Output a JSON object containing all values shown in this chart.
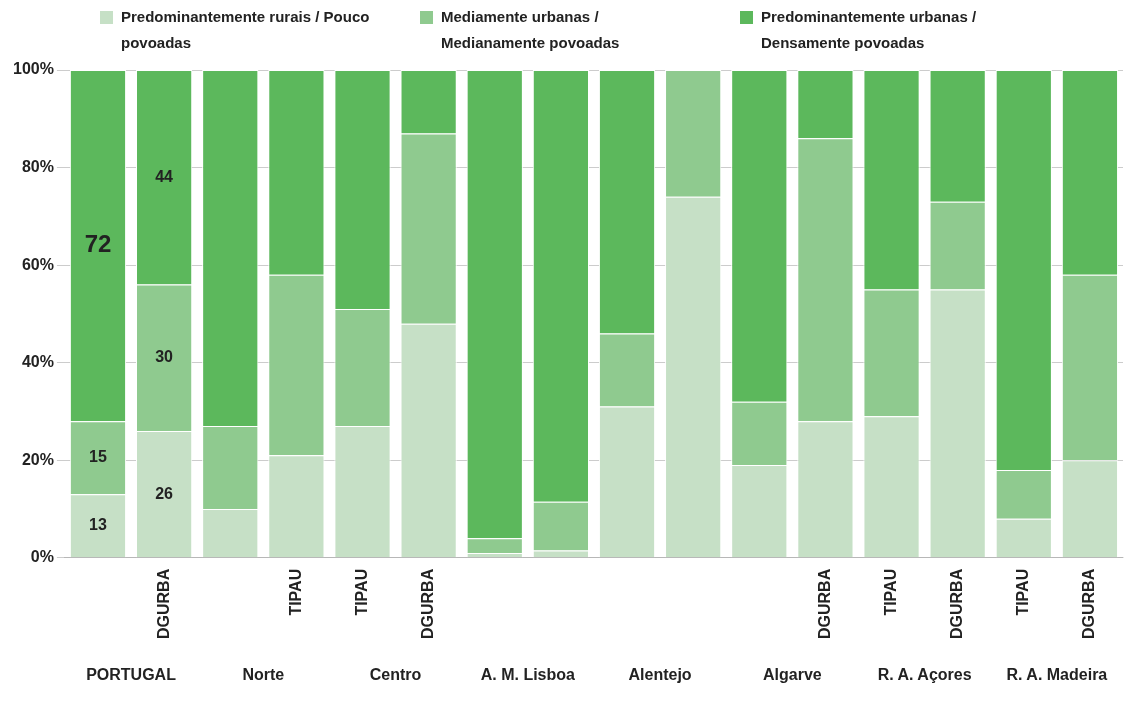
{
  "chart_data": {
    "type": "bar",
    "stacked": true,
    "categories": [
      null,
      "DGURBA",
      null,
      "TIPAU",
      "TIPAU",
      "DGURBA",
      null,
      null,
      null,
      null,
      null,
      "DGURBA",
      "TIPAU",
      "DGURBA",
      "TIPAU",
      "DGURBA"
    ],
    "series": [
      {
        "name": "Predominantemente rurais / Pouco povoadas",
        "color": "#c6e0c6",
        "values": [
          13,
          26,
          10,
          21,
          27,
          48,
          1,
          1.5,
          31,
          74,
          19,
          28,
          29,
          55,
          8,
          20
        ],
        "value_labels": [
          "13",
          "26",
          null,
          null,
          null,
          null,
          null,
          null,
          null,
          null,
          null,
          null,
          null,
          null,
          null,
          null
        ]
      },
      {
        "name": "Mediamente urbanas / Medianamente povoadas",
        "color": "#8fca8f",
        "values": [
          15,
          30,
          17,
          37,
          24,
          39,
          3,
          10,
          15,
          26,
          13,
          58,
          26,
          18,
          10,
          38
        ],
        "value_labels": [
          "15",
          "30",
          null,
          null,
          null,
          null,
          null,
          null,
          null,
          null,
          null,
          null,
          null,
          null,
          null,
          null
        ]
      },
      {
        "name": "Predominantemente urbanas / Densamente povoadas",
        "color": "#5cb85c",
        "values": [
          72,
          44,
          73,
          42,
          49,
          13,
          96,
          88.5,
          54,
          0,
          68,
          14,
          45,
          27,
          82,
          42
        ],
        "value_labels": [
          "72",
          "44",
          null,
          null,
          null,
          null,
          null,
          null,
          null,
          null,
          null,
          null,
          null,
          null,
          null,
          null
        ]
      }
    ],
    "ylim": [
      0,
      100
    ],
    "yticks": [
      {
        "value": 0,
        "label": "0%"
      },
      {
        "value": 20,
        "label": "20%"
      },
      {
        "value": 40,
        "label": "40%"
      },
      {
        "value": 60,
        "label": "60%"
      },
      {
        "value": 80,
        "label": "80%"
      },
      {
        "value": 100,
        "label": "100%"
      }
    ],
    "grid": "y",
    "legend": "top",
    "annotations": [
      "PORTUGAL",
      "Norte",
      "Centro",
      "A. M. Lisboa",
      "Alentejo",
      "Algarve",
      "R. A. Açores",
      "R. A. Madeira"
    ]
  }
}
